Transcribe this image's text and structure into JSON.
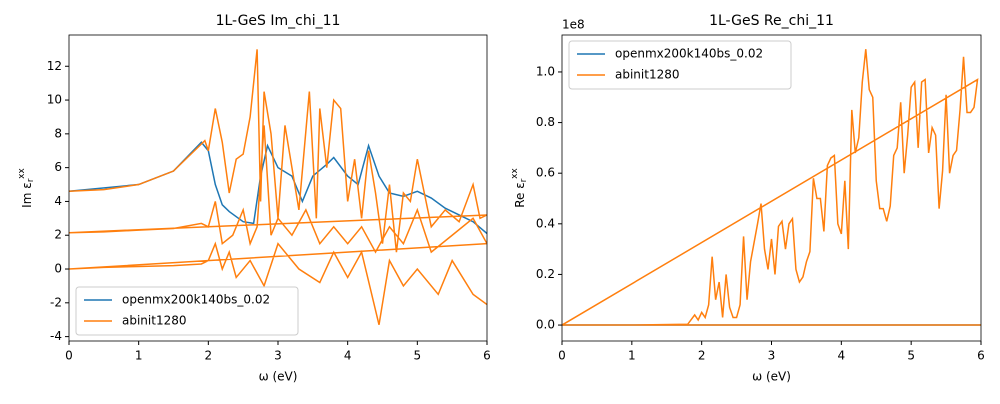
{
  "chart_data": [
    {
      "type": "line",
      "title": "1L-GeS Im_chi_11",
      "xlabel": "ω (eV)",
      "ylabel": {
        "text": "Im ε",
        "sub": "r",
        "sup": "xx"
      },
      "xlim": [
        0,
        6
      ],
      "ylim": [
        -4.26,
        13.85
      ],
      "xticks": [
        0,
        1,
        2,
        3,
        4,
        5,
        6
      ],
      "yticks": [
        -4,
        -2,
        0,
        2,
        4,
        6,
        8,
        10,
        12
      ],
      "legend": "lower left",
      "series": [
        {
          "name": "openmx200k140bs_0.02",
          "color": "#1f77b4",
          "x": [
            0,
            1,
            1.5,
            1.9,
            2.0,
            2.1,
            2.2,
            2.3,
            2.5,
            2.65,
            2.75,
            2.85,
            3.0,
            3.2,
            3.35,
            3.5,
            3.7,
            3.8,
            4.0,
            4.15,
            4.3,
            4.45,
            4.6,
            4.8,
            5.0,
            5.2,
            5.4,
            5.6,
            5.8,
            6.0
          ],
          "values": [
            4.6,
            5.0,
            5.8,
            7.5,
            7.0,
            5.0,
            3.8,
            3.4,
            2.8,
            2.7,
            5.5,
            7.3,
            6.0,
            5.5,
            4.0,
            5.5,
            6.2,
            6.6,
            5.5,
            5.0,
            7.3,
            5.5,
            4.5,
            4.3,
            4.6,
            4.2,
            3.6,
            3.2,
            2.8,
            2.1
          ]
        },
        {
          "name": "abinit1280",
          "color": "#ff7f0e",
          "x": [
            0,
            0.5,
            1,
            1.5,
            1.8,
            1.95,
            2.0,
            2.1,
            2.2,
            2.3,
            2.4,
            2.5,
            2.6,
            2.7,
            2.75,
            2.8,
            2.9,
            3.0,
            3.1,
            3.2,
            3.3,
            3.45,
            3.55,
            3.6,
            3.7,
            3.8,
            3.9,
            4.0,
            4.1,
            4.2,
            4.3,
            4.4,
            4.5,
            4.6,
            4.7,
            4.8,
            4.9,
            5.0,
            5.1,
            5.2,
            5.4,
            5.6,
            5.8,
            5.9,
            6.0,
            0,
            0.5,
            1,
            1.5,
            1.9,
            2.0,
            2.1,
            2.2,
            2.35,
            2.5,
            2.6,
            2.7,
            2.8,
            2.9,
            3.0,
            3.2,
            3.4,
            3.6,
            3.8,
            4.0,
            4.2,
            4.4,
            4.6,
            4.8,
            5.0,
            5.2,
            5.5,
            5.8,
            6.0,
            0,
            0.5,
            1,
            1.5,
            1.9,
            2.0,
            2.1,
            2.2,
            2.3,
            2.4,
            2.6,
            2.8,
            3.0,
            3.3,
            3.6,
            3.8,
            4.0,
            4.2,
            4.45,
            4.6,
            4.8,
            5.0,
            5.3,
            5.5,
            5.8,
            6.0
          ],
          "values": [
            4.6,
            4.7,
            5.0,
            5.8,
            7.0,
            7.6,
            7.0,
            9.5,
            7.5,
            4.5,
            6.5,
            6.8,
            9.0,
            13.0,
            4.0,
            10.5,
            8.0,
            3.0,
            8.5,
            6.0,
            3.5,
            10.5,
            3.0,
            9.5,
            6.0,
            10.0,
            9.5,
            4.0,
            6.5,
            3.0,
            7.0,
            4.5,
            1.5,
            5.0,
            1.0,
            4.5,
            4.0,
            6.5,
            4.5,
            2.5,
            3.5,
            2.8,
            5.0,
            3.0,
            3.2,
            2.15,
            2.2,
            2.3,
            2.4,
            2.7,
            2.5,
            4.0,
            1.5,
            2.0,
            3.5,
            1.5,
            2.5,
            8.5,
            2.0,
            3.0,
            2.0,
            3.5,
            1.5,
            2.5,
            1.5,
            2.5,
            1.0,
            2.5,
            1.5,
            3.5,
            1.0,
            2.0,
            3.0,
            1.5,
            0,
            0.1,
            0.15,
            0.2,
            0.3,
            0.5,
            1.5,
            0.0,
            1.0,
            -0.5,
            0.5,
            -1.0,
            1.5,
            0.0,
            -0.8,
            1.0,
            -0.5,
            1.0,
            -3.3,
            0.5,
            -1.0,
            0.0,
            -1.5,
            0.5,
            -1.5,
            -2.1
          ]
        }
      ]
    },
    {
      "type": "line",
      "title": "1L-GeS Re_chi_11",
      "xlabel": "ω (eV)",
      "ylabel": {
        "text": "Re ε",
        "sub": "r",
        "sup": "xx"
      },
      "y_offset_text": "1e8",
      "xlim": [
        0,
        6
      ],
      "ylim": [
        -0.063,
        1.146
      ],
      "xticks": [
        0,
        1,
        2,
        3,
        4,
        5,
        6
      ],
      "yticks": [
        {
          "value": 0,
          "label": "0.0"
        },
        0.2,
        0.4,
        0.6,
        0.8,
        {
          "value": 1,
          "label": "1.0"
        }
      ],
      "legend": "upper left",
      "series": [
        {
          "name": "openmx200k140bs_0.02",
          "color": "#1f77b4",
          "x": [
            0,
            6
          ],
          "values": [
            0,
            0
          ]
        },
        {
          "name": "abinit1280",
          "color": "#ff7f0e",
          "x": [
            0,
            1,
            1.8,
            1.9,
            1.95,
            2.0,
            2.05,
            2.1,
            2.15,
            2.2,
            2.25,
            2.3,
            2.35,
            2.4,
            2.45,
            2.5,
            2.55,
            2.6,
            2.65,
            2.7,
            2.8,
            2.85,
            2.9,
            2.95,
            3.0,
            3.05,
            3.1,
            3.15,
            3.2,
            3.25,
            3.3,
            3.35,
            3.4,
            3.45,
            3.5,
            3.55,
            3.6,
            3.65,
            3.7,
            3.75,
            3.8,
            3.85,
            3.9,
            3.95,
            4.0,
            4.05,
            4.1,
            4.15,
            4.2,
            4.25,
            4.3,
            4.35,
            4.4,
            4.45,
            4.5,
            4.55,
            4.6,
            4.65,
            4.7,
            4.75,
            4.8,
            4.85,
            4.9,
            4.95,
            5.0,
            5.05,
            5.1,
            5.15,
            5.2,
            5.25,
            5.3,
            5.35,
            5.4,
            5.45,
            5.5,
            5.55,
            5.6,
            5.65,
            5.7,
            5.75,
            5.8,
            5.85,
            5.9,
            5.95,
            0,
            6
          ],
          "values": [
            0,
            0,
            0.003,
            0.04,
            0.02,
            0.05,
            0.03,
            0.08,
            0.27,
            0.1,
            0.17,
            0.03,
            0.2,
            0.07,
            0.03,
            0.03,
            0.08,
            0.35,
            0.1,
            0.25,
            0.4,
            0.48,
            0.3,
            0.22,
            0.34,
            0.2,
            0.39,
            0.41,
            0.3,
            0.4,
            0.42,
            0.22,
            0.17,
            0.19,
            0.25,
            0.29,
            0.58,
            0.5,
            0.5,
            0.37,
            0.63,
            0.66,
            0.67,
            0.4,
            0.36,
            0.57,
            0.3,
            0.85,
            0.68,
            0.74,
            0.96,
            1.09,
            0.93,
            0.9,
            0.57,
            0.46,
            0.46,
            0.41,
            0.47,
            0.67,
            0.7,
            0.88,
            0.6,
            0.75,
            0.94,
            0.96,
            0.7,
            0.96,
            0.97,
            0.68,
            0.78,
            0.75,
            0.46,
            0.61,
            0.91,
            0.6,
            0.67,
            0.69,
            0.85,
            1.06,
            0.84,
            0.84,
            0.86,
            0.97,
            0,
            0
          ]
        }
      ]
    }
  ]
}
